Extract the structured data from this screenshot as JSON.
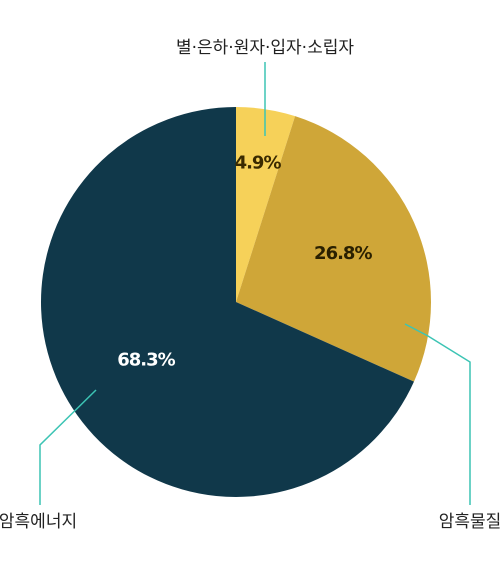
{
  "chart_data": {
    "type": "pie",
    "categories": [
      "별·은하·원자·입자·소립자",
      "암흑물질",
      "암흑에너지"
    ],
    "values": [
      4.9,
      26.8,
      68.3
    ],
    "value_labels": [
      "4.9%",
      "26.8%",
      "68.3%"
    ],
    "colors": [
      "#f6d159",
      "#cfa638",
      "#10384a"
    ]
  }
}
